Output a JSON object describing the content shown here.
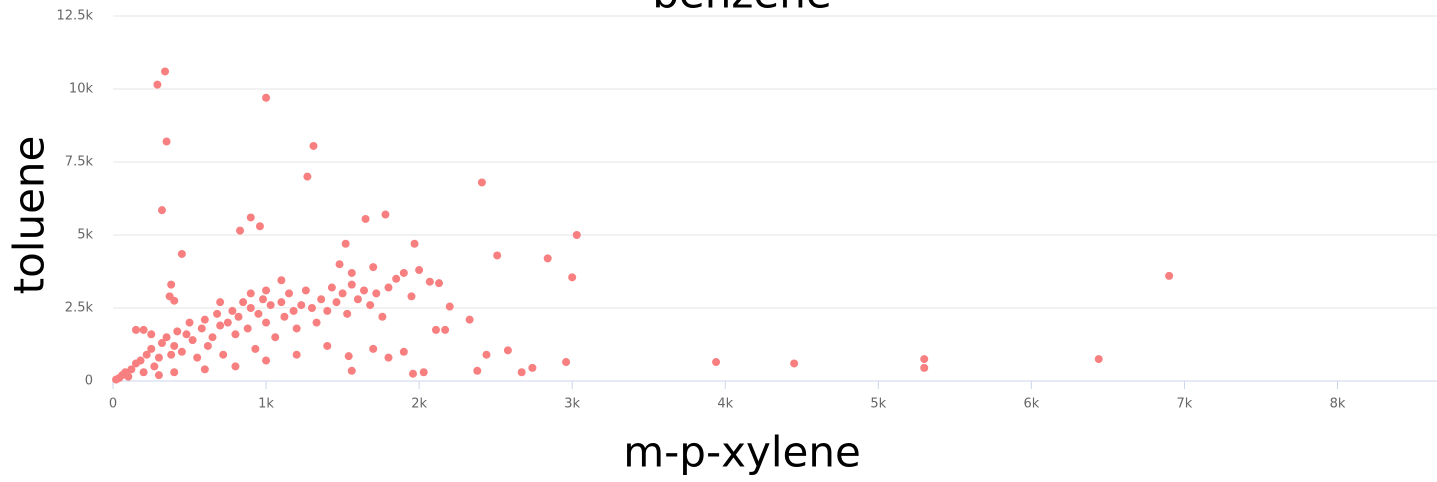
{
  "chart_data": {
    "type": "scatter",
    "title": "benzene",
    "x_label": "m-p-xylene",
    "y_label": "toluene",
    "color": "#f87f7f",
    "xlim": [
      0,
      8650
    ],
    "ylim": [
      0,
      12500
    ],
    "xticks": [
      0,
      {
        "value": 1000,
        "label": "1k"
      },
      {
        "value": 2000,
        "label": "2k"
      },
      {
        "value": 3000,
        "label": "3k"
      },
      {
        "value": 4000,
        "label": "4k"
      },
      {
        "value": 5000,
        "label": "5k"
      },
      {
        "value": 6000,
        "label": "6k"
      },
      {
        "value": 7000,
        "label": "7k"
      },
      {
        "value": 8000,
        "label": "8k"
      }
    ],
    "yticks": [
      0,
      {
        "value": 2500,
        "label": "2.5k"
      },
      {
        "value": 5000,
        "label": "5k"
      },
      {
        "value": 7500,
        "label": "7.5k"
      },
      {
        "value": 10000,
        "label": "10k"
      },
      {
        "value": 12500,
        "label": "12.5k"
      }
    ],
    "grid": true,
    "x": [
      290,
      340,
      350,
      320,
      450,
      1000,
      1310,
      1270,
      2410,
      3030,
      2510,
      2840,
      3000,
      6900,
      1780,
      1650,
      900,
      960,
      830,
      1970,
      1520,
      2440,
      2580,
      2670,
      2740,
      2960,
      3940,
      4450,
      5300,
      5300,
      6440,
      2380,
      2030,
      1960,
      1560,
      1540,
      2200,
      2330,
      2110,
      2170,
      2070,
      2130,
      1700,
      1480,
      1560,
      380,
      370,
      400,
      1100,
      20,
      40,
      60,
      80,
      100,
      120,
      150,
      180,
      200,
      220,
      250,
      270,
      300,
      320,
      350,
      380,
      400,
      420,
      450,
      480,
      500,
      520,
      550,
      580,
      600,
      620,
      650,
      680,
      700,
      720,
      750,
      780,
      800,
      820,
      850,
      880,
      900,
      930,
      950,
      980,
      1000,
      1030,
      1060,
      1100,
      1120,
      1150,
      1180,
      1200,
      1230,
      1260,
      1300,
      1330,
      1360,
      1400,
      1430,
      1460,
      1500,
      1530,
      1560,
      1600,
      1640,
      1680,
      1720,
      1760,
      1800,
      1850,
      1900,
      1950,
      2000,
      1000,
      1200,
      800,
      600,
      400,
      300,
      1400,
      1700,
      1800,
      1900,
      200,
      150,
      250,
      700,
      900,
      1000
    ],
    "values": [
      10150,
      10600,
      8200,
      5850,
      4350,
      9700,
      8050,
      7000,
      6800,
      5000,
      4300,
      4200,
      3550,
      3600,
      5700,
      5550,
      5600,
      5300,
      5150,
      4700,
      4700,
      900,
      1050,
      300,
      450,
      650,
      650,
      600,
      750,
      450,
      750,
      350,
      300,
      250,
      350,
      850,
      2550,
      2100,
      1750,
      1750,
      3400,
      3350,
      3900,
      4000,
      3700,
      3300,
      2900,
      2750,
      3450,
      50,
      100,
      200,
      300,
      150,
      400,
      600,
      700,
      300,
      900,
      1100,
      500,
      800,
      1300,
      1500,
      900,
      1200,
      1700,
      1000,
      1600,
      2000,
      1400,
      800,
      1800,
      2100,
      1200,
      1500,
      2300,
      1900,
      900,
      2000,
      2400,
      1600,
      2200,
      2700,
      1800,
      2500,
      1100,
      2300,
      2800,
      2000,
      2600,
      1500,
      2700,
      2200,
      3000,
      2400,
      1800,
      2600,
      3100,
      2500,
      2000,
      2800,
      2400,
      3200,
      2700,
      3000,
      2300,
      3300,
      2800,
      3100,
      2600,
      3000,
      2200,
      3200,
      3500,
      3700,
      2900,
      3800,
      700,
      900,
      500,
      400,
      300,
      200,
      1200,
      1100,
      800,
      1000,
      1750,
      1750,
      1600,
      2700,
      3000,
      3100
    ]
  }
}
